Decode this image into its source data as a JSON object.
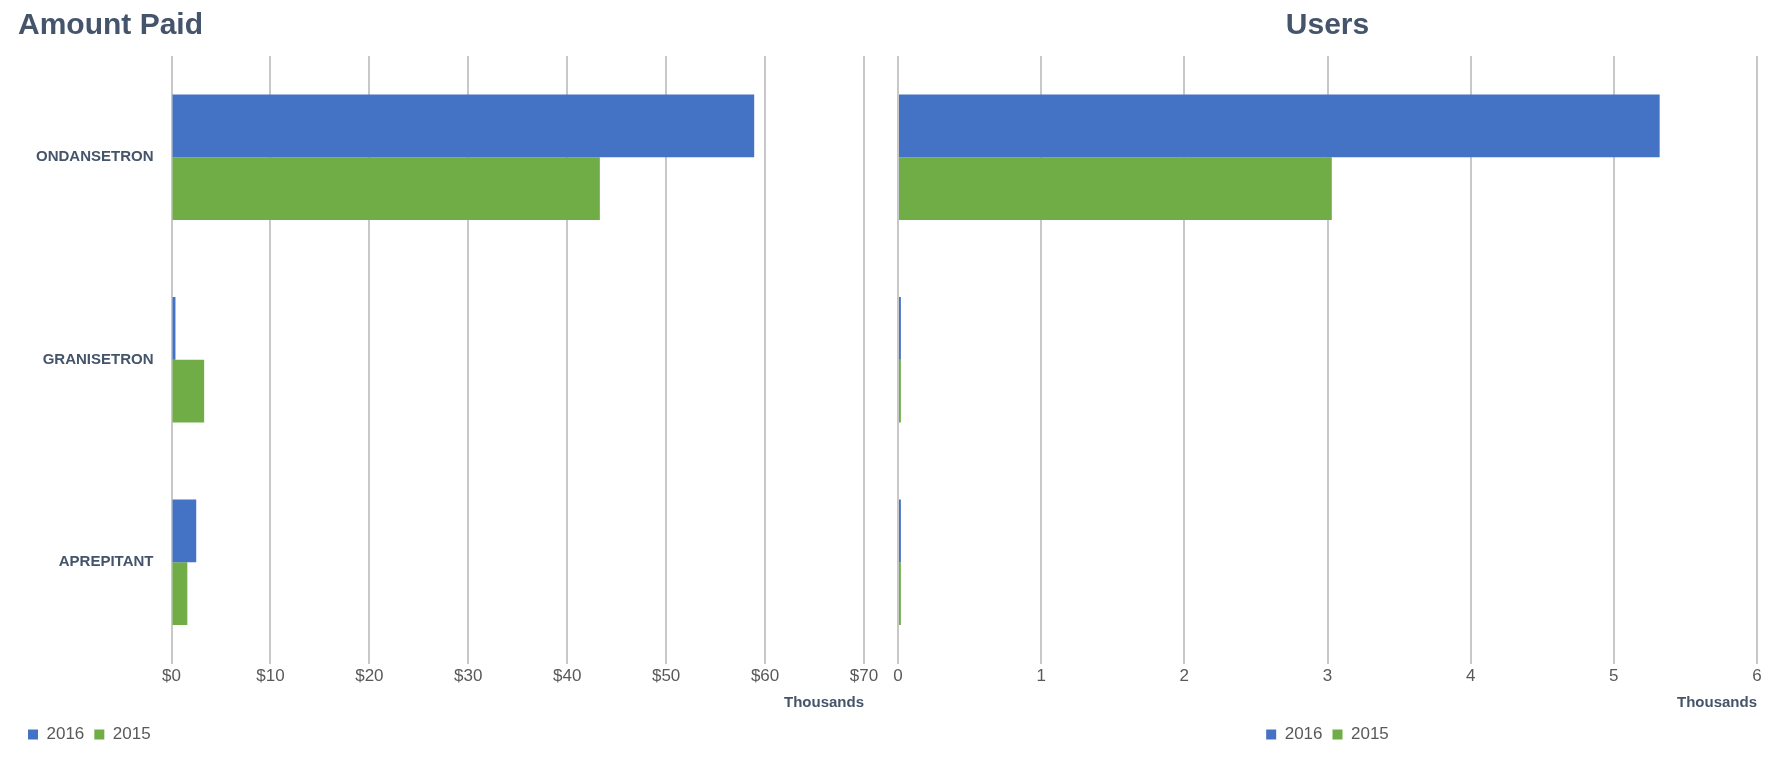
{
  "chart_data": [
    {
      "type": "bar",
      "orientation": "horizontal",
      "title": "Amount Paid",
      "xlabel": "Thousands",
      "categories": [
        "ONDANSETRON",
        "GRANISETRON",
        "APREPITANT"
      ],
      "series": [
        {
          "name": "2016",
          "color": "#4472c4",
          "values": [
            58.9,
            0.4,
            2.5
          ]
        },
        {
          "name": "2015",
          "color": "#70ad47",
          "values": [
            43.3,
            3.3,
            1.6
          ]
        }
      ],
      "xlim": [
        0,
        70
      ],
      "xticks": [
        {
          "value": 0,
          "label": "$0"
        },
        {
          "value": 10,
          "label": "$10"
        },
        {
          "value": 20,
          "label": "$20"
        },
        {
          "value": 30,
          "label": "$30"
        },
        {
          "value": 40,
          "label": "$40"
        },
        {
          "value": 50,
          "label": "$50"
        },
        {
          "value": 60,
          "label": "$60"
        },
        {
          "value": 70,
          "label": "$70"
        }
      ],
      "grid": "x",
      "legend": "bottom"
    },
    {
      "type": "bar",
      "orientation": "horizontal",
      "title": "Users",
      "xlabel": "Thousands",
      "categories": [
        null,
        null,
        null
      ],
      "series": [
        {
          "name": "2016",
          "color": "#4472c4",
          "values": [
            5.32,
            0.02,
            0.02
          ]
        },
        {
          "name": "2015",
          "color": "#70ad47",
          "values": [
            3.03,
            0.02,
            0.02
          ]
        }
      ],
      "xlim": [
        0,
        6
      ],
      "xticks": [
        0,
        1,
        2,
        3,
        4,
        5,
        6
      ],
      "tick_labels": "x",
      "grid": "x",
      "legend": "bottom"
    }
  ]
}
